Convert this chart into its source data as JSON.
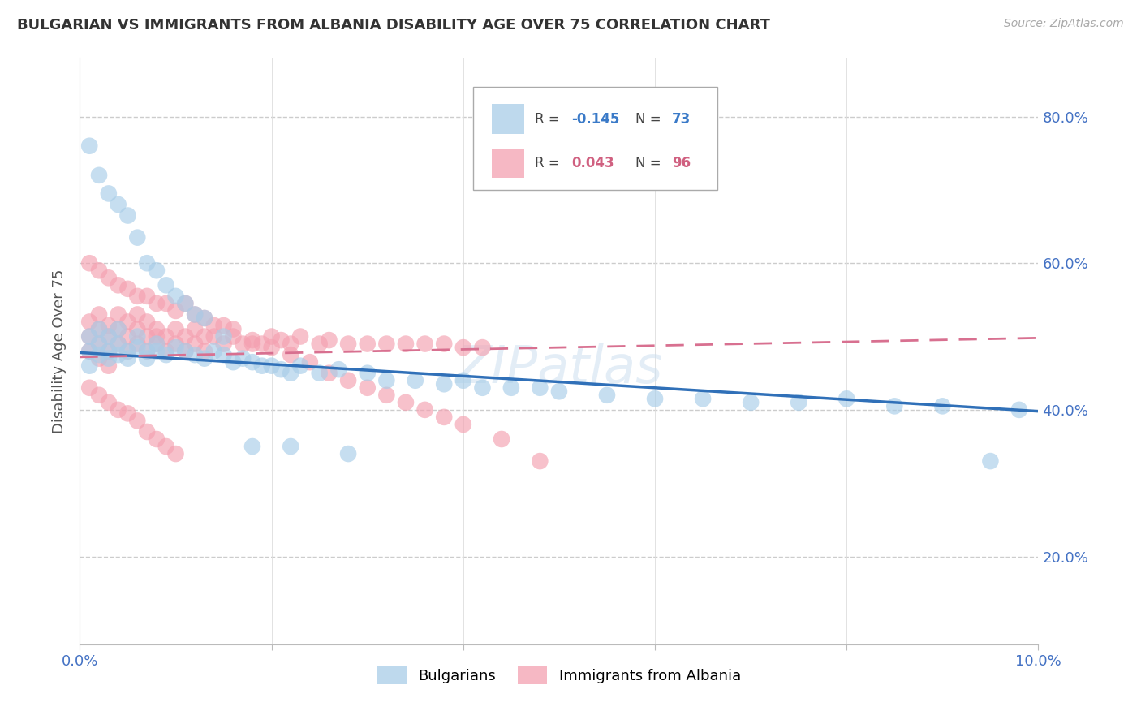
{
  "title": "BULGARIAN VS IMMIGRANTS FROM ALBANIA DISABILITY AGE OVER 75 CORRELATION CHART",
  "source": "Source: ZipAtlas.com",
  "ylabel": "Disability Age Over 75",
  "xlim": [
    0.0,
    0.1
  ],
  "ylim": [
    0.08,
    0.88
  ],
  "ytick_positions": [
    0.2,
    0.4,
    0.6,
    0.8
  ],
  "ytick_labels": [
    "20.0%",
    "40.0%",
    "60.0%",
    "80.0%"
  ],
  "xtick_positions": [
    0.0,
    0.02,
    0.04,
    0.06,
    0.08,
    0.1
  ],
  "xtick_labels": [
    "0.0%",
    "",
    "",
    "",
    "",
    "10.0%"
  ],
  "blue_color": "#a8cde8",
  "pink_color": "#f4a0b0",
  "blue_line_color": "#3070b8",
  "pink_line_color": "#d87090",
  "watermark": "ZIPatlas",
  "blue_scatter_x": [
    0.001,
    0.001,
    0.001,
    0.002,
    0.002,
    0.002,
    0.003,
    0.003,
    0.003,
    0.004,
    0.004,
    0.004,
    0.005,
    0.005,
    0.006,
    0.006,
    0.007,
    0.007,
    0.008,
    0.008,
    0.009,
    0.01,
    0.011,
    0.012,
    0.013,
    0.014,
    0.015,
    0.016,
    0.017,
    0.018,
    0.019,
    0.02,
    0.021,
    0.022,
    0.023,
    0.025,
    0.027,
    0.03,
    0.032,
    0.035,
    0.038,
    0.04,
    0.042,
    0.045,
    0.048,
    0.05,
    0.055,
    0.06,
    0.065,
    0.07,
    0.075,
    0.08,
    0.085,
    0.09,
    0.095,
    0.098,
    0.001,
    0.002,
    0.003,
    0.004,
    0.005,
    0.006,
    0.007,
    0.008,
    0.009,
    0.01,
    0.011,
    0.012,
    0.013,
    0.015,
    0.018,
    0.022,
    0.028
  ],
  "blue_scatter_y": [
    0.48,
    0.46,
    0.5,
    0.475,
    0.49,
    0.51,
    0.47,
    0.48,
    0.5,
    0.475,
    0.49,
    0.51,
    0.48,
    0.47,
    0.485,
    0.5,
    0.48,
    0.47,
    0.49,
    0.48,
    0.475,
    0.485,
    0.48,
    0.475,
    0.47,
    0.48,
    0.475,
    0.465,
    0.47,
    0.465,
    0.46,
    0.46,
    0.455,
    0.45,
    0.46,
    0.45,
    0.455,
    0.45,
    0.44,
    0.44,
    0.435,
    0.44,
    0.43,
    0.43,
    0.43,
    0.425,
    0.42,
    0.415,
    0.415,
    0.41,
    0.41,
    0.415,
    0.405,
    0.405,
    0.33,
    0.4,
    0.76,
    0.72,
    0.695,
    0.68,
    0.665,
    0.635,
    0.6,
    0.59,
    0.57,
    0.555,
    0.545,
    0.53,
    0.525,
    0.5,
    0.35,
    0.35,
    0.34
  ],
  "pink_scatter_x": [
    0.001,
    0.001,
    0.001,
    0.002,
    0.002,
    0.002,
    0.002,
    0.003,
    0.003,
    0.003,
    0.003,
    0.004,
    0.004,
    0.004,
    0.005,
    0.005,
    0.005,
    0.006,
    0.006,
    0.006,
    0.007,
    0.007,
    0.007,
    0.008,
    0.008,
    0.008,
    0.009,
    0.009,
    0.01,
    0.01,
    0.011,
    0.011,
    0.012,
    0.012,
    0.013,
    0.013,
    0.014,
    0.015,
    0.016,
    0.017,
    0.018,
    0.019,
    0.02,
    0.021,
    0.022,
    0.023,
    0.025,
    0.026,
    0.028,
    0.03,
    0.032,
    0.034,
    0.036,
    0.038,
    0.04,
    0.042,
    0.001,
    0.002,
    0.003,
    0.004,
    0.005,
    0.006,
    0.007,
    0.008,
    0.009,
    0.01,
    0.011,
    0.012,
    0.013,
    0.014,
    0.015,
    0.016,
    0.018,
    0.02,
    0.022,
    0.024,
    0.026,
    0.028,
    0.03,
    0.032,
    0.034,
    0.036,
    0.038,
    0.04,
    0.044,
    0.048,
    0.001,
    0.002,
    0.003,
    0.004,
    0.005,
    0.006,
    0.007,
    0.008,
    0.009,
    0.01
  ],
  "pink_scatter_y": [
    0.5,
    0.48,
    0.52,
    0.49,
    0.51,
    0.53,
    0.47,
    0.5,
    0.515,
    0.48,
    0.46,
    0.51,
    0.49,
    0.53,
    0.5,
    0.48,
    0.52,
    0.51,
    0.49,
    0.53,
    0.5,
    0.48,
    0.52,
    0.5,
    0.49,
    0.51,
    0.48,
    0.5,
    0.49,
    0.51,
    0.5,
    0.48,
    0.51,
    0.49,
    0.5,
    0.48,
    0.5,
    0.49,
    0.5,
    0.49,
    0.495,
    0.49,
    0.5,
    0.495,
    0.49,
    0.5,
    0.49,
    0.495,
    0.49,
    0.49,
    0.49,
    0.49,
    0.49,
    0.49,
    0.485,
    0.485,
    0.6,
    0.59,
    0.58,
    0.57,
    0.565,
    0.555,
    0.555,
    0.545,
    0.545,
    0.535,
    0.545,
    0.53,
    0.525,
    0.515,
    0.515,
    0.51,
    0.49,
    0.485,
    0.475,
    0.465,
    0.45,
    0.44,
    0.43,
    0.42,
    0.41,
    0.4,
    0.39,
    0.38,
    0.36,
    0.33,
    0.43,
    0.42,
    0.41,
    0.4,
    0.395,
    0.385,
    0.37,
    0.36,
    0.35,
    0.34
  ],
  "blue_line_x0": 0.0,
  "blue_line_x1": 0.1,
  "blue_line_y0": 0.478,
  "blue_line_y1": 0.398,
  "pink_line_x0": 0.0,
  "pink_line_x1": 0.1,
  "pink_line_y0": 0.472,
  "pink_line_y1": 0.498
}
